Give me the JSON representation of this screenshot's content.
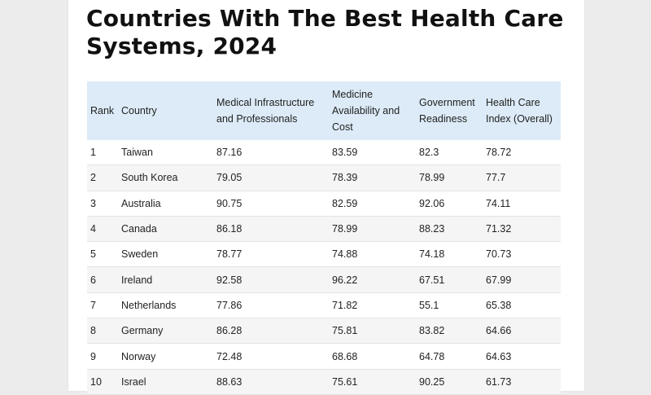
{
  "title": "Countries With The Best Health Care Systems, 2024",
  "table": {
    "headers": [
      "Rank",
      "Country",
      "Medical Infrastructure and Professionals",
      "Medicine Availability and Cost",
      "Government Readiness",
      "Health Care Index (Overall)"
    ],
    "rows": [
      [
        "1",
        "Taiwan",
        "87.16",
        "83.59",
        "82.3",
        "78.72"
      ],
      [
        "2",
        "South Korea",
        "79.05",
        "78.39",
        "78.99",
        "77.7"
      ],
      [
        "3",
        "Australia",
        "90.75",
        "82.59",
        "92.06",
        "74.11"
      ],
      [
        "4",
        "Canada",
        "86.18",
        "78.99",
        "88.23",
        "71.32"
      ],
      [
        "5",
        "Sweden",
        "78.77",
        "74.88",
        "74.18",
        "70.73"
      ],
      [
        "6",
        "Ireland",
        "92.58",
        "96.22",
        "67.51",
        "67.99"
      ],
      [
        "7",
        "Netherlands",
        "77.86",
        "71.82",
        "55.1",
        "65.38"
      ],
      [
        "8",
        "Germany",
        "86.28",
        "75.81",
        "83.82",
        "64.66"
      ],
      [
        "9",
        "Norway",
        "72.48",
        "68.68",
        "64.78",
        "64.63"
      ],
      [
        "10",
        "Israel",
        "88.63",
        "75.61",
        "90.25",
        "61.73"
      ]
    ]
  },
  "colors": {
    "header_bg": "#dcebf7",
    "stripe_bg": "#f5f5f5",
    "page_bg": "#ececec"
  }
}
